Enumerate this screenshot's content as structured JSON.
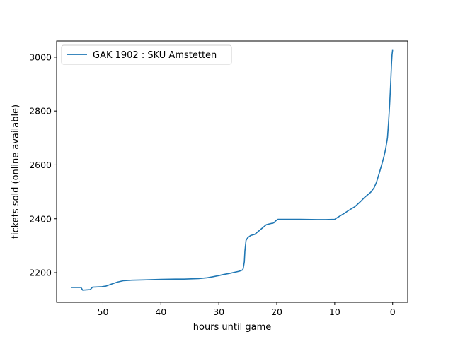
{
  "chart_data": {
    "type": "line",
    "xlabel": "hours until game",
    "ylabel": "tickets sold (online available)",
    "xlim": [
      58,
      -2.6
    ],
    "ylim": [
      2090,
      3060
    ],
    "x_ticks": [
      50,
      40,
      30,
      20,
      10,
      0
    ],
    "y_ticks": [
      2200,
      2400,
      2600,
      2800,
      3000
    ],
    "legend_position": "top-left",
    "grid": false,
    "series": [
      {
        "name": "GAK 1902 : SKU Amstetten",
        "color": "#1f77b4",
        "x": [
          55.5,
          53.8,
          53.5,
          52.2,
          51.8,
          50.2,
          49.5,
          48.5,
          47.5,
          46.5,
          45,
          43,
          40,
          37.5,
          36,
          33.5,
          32,
          31,
          30,
          29.2,
          28.2,
          26.5,
          25.9,
          25.8,
          25.6,
          25.5,
          25.3,
          25.0,
          24.5,
          23.8,
          22.8,
          21.8,
          20.5,
          20.2,
          19.8,
          16,
          13,
          11.5,
          10,
          9.5,
          8.5,
          7.5,
          6.5,
          5.5,
          4.8,
          3.8,
          3.2,
          2.8,
          2.3,
          1.9,
          1.5,
          1.2,
          0.9,
          0.7,
          0.5,
          0.35,
          0.2,
          0.1,
          0
        ],
        "y": [
          2145,
          2145,
          2135,
          2137,
          2146,
          2148,
          2150,
          2158,
          2165,
          2170,
          2172,
          2173,
          2175,
          2176,
          2176,
          2178,
          2181,
          2185,
          2189,
          2193,
          2197,
          2205,
          2210,
          2215,
          2240,
          2280,
          2320,
          2330,
          2338,
          2342,
          2360,
          2378,
          2385,
          2392,
          2398,
          2398,
          2397,
          2397,
          2398,
          2405,
          2418,
          2432,
          2445,
          2465,
          2480,
          2498,
          2515,
          2535,
          2570,
          2600,
          2630,
          2660,
          2700,
          2760,
          2830,
          2900,
          2975,
          3010,
          3027
        ]
      }
    ]
  }
}
